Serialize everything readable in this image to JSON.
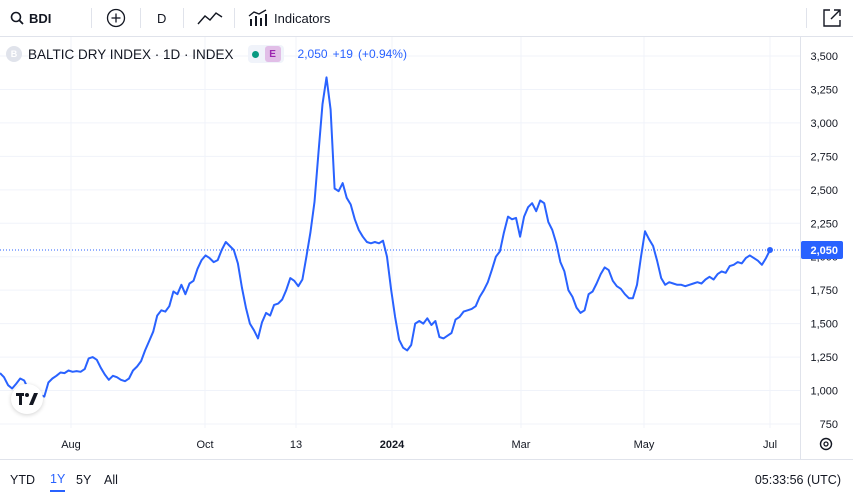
{
  "toolbar": {
    "symbol": "BDI",
    "interval": "D",
    "indicators_label": "Indicators",
    "icons": [
      "search-icon",
      "add-symbol-icon",
      "line-chart-icon",
      "indicators-icon",
      "popout-icon"
    ]
  },
  "legend": {
    "logo_letter": "B",
    "title": "BALTIC DRY INDEX · 1D · INDEX",
    "badge_e": "E",
    "last_price": "2,050",
    "change": "+19",
    "change_pct": "(+0.94%)"
  },
  "price_axis": {
    "labels": [
      "3,500",
      "3,250",
      "3,000",
      "2,750",
      "2,500",
      "2,250",
      "2,000",
      "1,750",
      "1,500",
      "1,250",
      "1,000",
      "750"
    ],
    "current_price_label": "2,050"
  },
  "time_axis": {
    "labels": [
      {
        "text": "Aug",
        "bold": false
      },
      {
        "text": "Oct",
        "bold": false
      },
      {
        "text": "13",
        "bold": false
      },
      {
        "text": "2024",
        "bold": true
      },
      {
        "text": "Mar",
        "bold": false
      },
      {
        "text": "May",
        "bold": false
      },
      {
        "text": "Jul",
        "bold": false
      }
    ]
  },
  "bottom_bar": {
    "ranges": [
      "YTD",
      "1Y",
      "5Y",
      "All"
    ],
    "active_range": "1Y",
    "clock": "05:33:56 (UTC)"
  },
  "colors": {
    "line": "#2962ff",
    "accent": "#2962ff",
    "grid": "#f0f3fa",
    "text": "#131722"
  },
  "chart_data": {
    "type": "line",
    "title": "BALTIC DRY INDEX · 1D · INDEX",
    "ylim": [
      750,
      3500
    ],
    "xlabels": [
      "Aug",
      "Oct",
      "13",
      "2024",
      "Mar",
      "May",
      "Jul"
    ],
    "last_value": 2050,
    "series": [
      {
        "name": "BALTIC DRY INDEX",
        "values": [
          1130,
          1100,
          1040,
          1015,
          1050,
          1090,
          1075,
          1010,
          990,
          985,
          965,
          955,
          1060,
          1090,
          1110,
          1135,
          1130,
          1150,
          1140,
          1145,
          1140,
          1160,
          1240,
          1250,
          1230,
          1170,
          1120,
          1080,
          1110,
          1100,
          1080,
          1070,
          1090,
          1150,
          1180,
          1220,
          1300,
          1370,
          1440,
          1560,
          1600,
          1590,
          1630,
          1740,
          1720,
          1790,
          1720,
          1800,
          1820,
          1910,
          1975,
          2010,
          1990,
          1960,
          1975,
          2050,
          2110,
          2080,
          2050,
          1950,
          1770,
          1620,
          1500,
          1450,
          1390,
          1510,
          1580,
          1560,
          1640,
          1650,
          1680,
          1750,
          1840,
          1820,
          1780,
          1830,
          2000,
          2180,
          2410,
          2780,
          3140,
          3340,
          3100,
          2510,
          2490,
          2550,
          2440,
          2390,
          2280,
          2200,
          2150,
          2110,
          2100,
          2110,
          2100,
          2120,
          2000,
          1760,
          1550,
          1380,
          1320,
          1300,
          1340,
          1500,
          1520,
          1500,
          1540,
          1490,
          1520,
          1400,
          1390,
          1410,
          1430,
          1530,
          1550,
          1590,
          1600,
          1610,
          1630,
          1700,
          1750,
          1810,
          1900,
          2000,
          2040,
          2180,
          2300,
          2280,
          2290,
          2150,
          2300,
          2370,
          2400,
          2340,
          2420,
          2400,
          2260,
          2200,
          2100,
          1960,
          1890,
          1750,
          1700,
          1620,
          1580,
          1600,
          1720,
          1740,
          1800,
          1870,
          1920,
          1900,
          1820,
          1780,
          1760,
          1720,
          1690,
          1690,
          1790,
          2000,
          2190,
          2130,
          2080,
          1970,
          1840,
          1790,
          1810,
          1800,
          1790,
          1790,
          1780,
          1790,
          1800,
          1810,
          1800,
          1830,
          1850,
          1830,
          1870,
          1890,
          1880,
          1930,
          1940,
          1960,
          1950,
          1990,
          2010,
          1990,
          1970,
          1940,
          1990,
          2050
        ]
      }
    ],
    "xlim": [
      0,
      192
    ]
  }
}
